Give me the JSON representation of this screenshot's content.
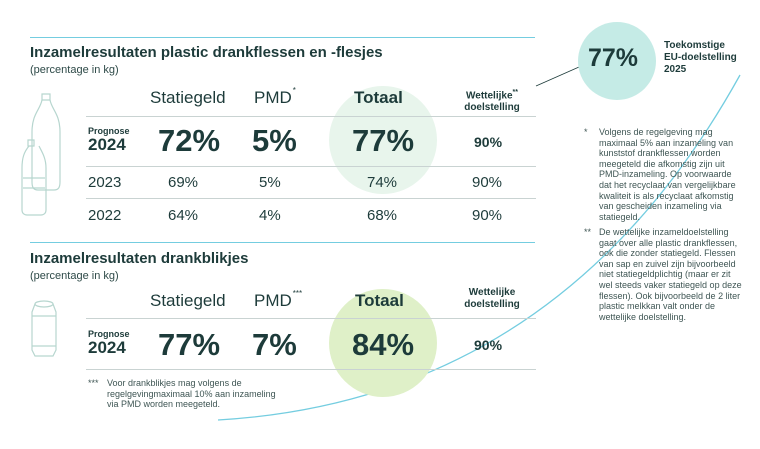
{
  "goal": {
    "value": "77%",
    "line1": "Toekomstige",
    "line2": "EU-doelstelling",
    "line3": "2025"
  },
  "bottles": {
    "title": "Inzamelresultaten plastic drankflessen en -flesjes",
    "subtitle": "(percentage in kg)",
    "col_statiegeld": "Statiegeld",
    "col_pmd": "PMD",
    "col_pmd_mark": "*",
    "col_totaal": "Totaal",
    "col_legal_line1": "Wettelijke",
    "col_legal_mark": "**",
    "col_legal_line2": "doelstelling",
    "prognose_small": "Prognose",
    "prognose_year": "2024",
    "prognose": {
      "statiegeld": "72%",
      "pmd": "5%",
      "totaal": "77%",
      "wettelijk": "90%"
    },
    "rows": [
      {
        "year": "2023",
        "statiegeld": "69%",
        "pmd": "5%",
        "totaal": "74%",
        "wettelijk": "90%"
      },
      {
        "year": "2022",
        "statiegeld": "64%",
        "pmd": "4%",
        "totaal": "68%",
        "wettelijk": "90%"
      }
    ]
  },
  "cans": {
    "title": "Inzamelresultaten drankblikjes",
    "subtitle": "(percentage in kg)",
    "col_statiegeld": "Statiegeld",
    "col_pmd": "PMD",
    "col_pmd_mark": "***",
    "col_totaal": "Totaal",
    "col_legal_line1": "Wettelijke",
    "col_legal_line2": "doelstelling",
    "prognose_small": "Prognose",
    "prognose_year": "2024",
    "prognose": {
      "statiegeld": "77%",
      "pmd": "7%",
      "totaal": "84%",
      "wettelijk": "90%"
    }
  },
  "notes": {
    "star1_mark": "*",
    "star1_lines": [
      "Volgens de regelgeving mag",
      "maximaal 5% aan inzameling van",
      "kunststof drankflessen worden",
      "meegeteld die afkomstig zijn uit",
      "PMD-inzameling. Op voorwaarde",
      "dat het recyclaat van vergelijkbare",
      "kwaliteit is als recyclaat afkomstig",
      "van gescheiden inzameling via",
      "statiegeld."
    ],
    "star2_mark": "**",
    "star2_lines": [
      "De wettelijke inzameldoelstelling",
      "gaat over alle plastic drankflessen,",
      "ook die zonder statiegeld. Flessen",
      "van sap en zuivel zijn bijvoorbeeld",
      "niet statiegeldplichtig (maar er zit",
      "wel steeds vaker statiegeld op deze",
      "flessen). Ook bijvoorbeeld de 2 liter",
      "plastic melkkan valt onder de",
      "wettelijke doelstelling."
    ],
    "star3_mark": "***",
    "star3_lines": [
      "Voor drankblikjes mag volgens de",
      "regelgevingmaximaal 10% aan inzameling",
      "via PMD worden meegeteld."
    ]
  },
  "colors": {
    "text": "#1d3b3a",
    "accent_line": "#74cde0",
    "goal_circle": "#c5ebe6",
    "totaal_circle_bottles": "#e8f5ec",
    "totaal_circle_cans": "#dff0c8"
  }
}
